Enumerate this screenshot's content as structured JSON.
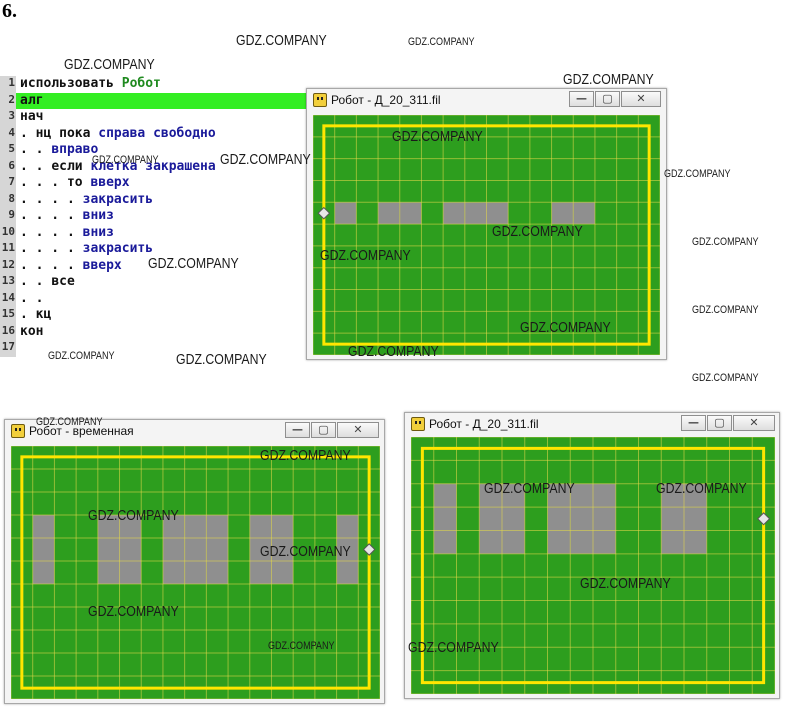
{
  "task_number": "6.",
  "code_lines": [
    {
      "n": "1",
      "parts": [
        {
          "t": "использовать ",
          "c": "kw"
        },
        {
          "t": "Робот",
          "c": "rob"
        }
      ]
    },
    {
      "n": "2",
      "hl": true,
      "parts": [
        {
          "t": "алг",
          "c": "kw"
        }
      ]
    },
    {
      "n": "3",
      "parts": [
        {
          "t": "нач",
          "c": "kw"
        }
      ]
    },
    {
      "n": "4",
      "parts": [
        {
          "t": ". ",
          "c": "dot"
        },
        {
          "t": "нц пока ",
          "c": "kw"
        },
        {
          "t": "справа свободно",
          "c": "id"
        }
      ]
    },
    {
      "n": "5",
      "parts": [
        {
          "t": ". . ",
          "c": "dot"
        },
        {
          "t": "вправо",
          "c": "id"
        }
      ]
    },
    {
      "n": "6",
      "parts": [
        {
          "t": ". . ",
          "c": "dot"
        },
        {
          "t": "если ",
          "c": "kw"
        },
        {
          "t": "клетка закрашена",
          "c": "id"
        }
      ]
    },
    {
      "n": "7",
      "parts": [
        {
          "t": ". . . ",
          "c": "dot"
        },
        {
          "t": "то ",
          "c": "kw"
        },
        {
          "t": "вверх",
          "c": "id"
        }
      ]
    },
    {
      "n": "8",
      "parts": [
        {
          "t": ". . . . ",
          "c": "dot"
        },
        {
          "t": "закрасить",
          "c": "id"
        }
      ]
    },
    {
      "n": "9",
      "parts": [
        {
          "t": ". . . . ",
          "c": "dot"
        },
        {
          "t": "вниз",
          "c": "id"
        }
      ]
    },
    {
      "n": "10",
      "parts": [
        {
          "t": ". . . . ",
          "c": "dot"
        },
        {
          "t": "вниз",
          "c": "id"
        }
      ]
    },
    {
      "n": "11",
      "parts": [
        {
          "t": ". . . . ",
          "c": "dot"
        },
        {
          "t": "закрасить",
          "c": "id"
        }
      ]
    },
    {
      "n": "12",
      "parts": [
        {
          "t": ". . . . ",
          "c": "dot"
        },
        {
          "t": "вверх",
          "c": "id"
        }
      ]
    },
    {
      "n": "13",
      "parts": [
        {
          "t": ". . ",
          "c": "dot"
        },
        {
          "t": "все",
          "c": "kw"
        }
      ]
    },
    {
      "n": "14",
      "parts": [
        {
          "t": ". .",
          "c": "dot"
        }
      ]
    },
    {
      "n": "15",
      "parts": [
        {
          "t": ". ",
          "c": "dot"
        },
        {
          "t": "кц",
          "c": "kw"
        }
      ]
    },
    {
      "n": "16",
      "parts": [
        {
          "t": "кон",
          "c": "kw"
        }
      ]
    },
    {
      "n": "17",
      "parts": []
    }
  ],
  "windows": [
    {
      "id": "w1",
      "title": "Робот - Д_20_311.fil",
      "cols": 16,
      "rows": 11,
      "robot": {
        "col": 0,
        "row": 4
      },
      "gray_cells": [
        [
          4,
          1
        ],
        [
          4,
          3
        ],
        [
          4,
          4
        ],
        [
          4,
          6
        ],
        [
          4,
          7
        ],
        [
          4,
          8
        ],
        [
          4,
          11
        ],
        [
          4,
          12
        ]
      ]
    },
    {
      "id": "w2",
      "title": "Робот - временная",
      "cols": 17,
      "rows": 11,
      "robot": {
        "col": 16,
        "row": 4
      },
      "gray_cells": [
        [
          3,
          1
        ],
        [
          4,
          1
        ],
        [
          5,
          1
        ],
        [
          3,
          4
        ],
        [
          4,
          4
        ],
        [
          5,
          4
        ],
        [
          3,
          5
        ],
        [
          4,
          5
        ],
        [
          5,
          5
        ],
        [
          3,
          7
        ],
        [
          4,
          7
        ],
        [
          5,
          7
        ],
        [
          3,
          8
        ],
        [
          4,
          8
        ],
        [
          5,
          8
        ],
        [
          3,
          9
        ],
        [
          4,
          9
        ],
        [
          5,
          9
        ],
        [
          3,
          11
        ],
        [
          4,
          11
        ],
        [
          5,
          11
        ],
        [
          3,
          12
        ],
        [
          4,
          12
        ],
        [
          5,
          12
        ],
        [
          3,
          15
        ],
        [
          4,
          15
        ],
        [
          5,
          15
        ]
      ]
    },
    {
      "id": "w3",
      "title": "Робот - Д_20_311.fil",
      "cols": 16,
      "rows": 11,
      "robot": {
        "col": 15,
        "row": 3
      },
      "gray_cells": [
        [
          2,
          1
        ],
        [
          3,
          1
        ],
        [
          4,
          1
        ],
        [
          2,
          3
        ],
        [
          3,
          3
        ],
        [
          4,
          3
        ],
        [
          2,
          4
        ],
        [
          3,
          4
        ],
        [
          4,
          4
        ],
        [
          2,
          6
        ],
        [
          3,
          6
        ],
        [
          4,
          6
        ],
        [
          2,
          7
        ],
        [
          3,
          7
        ],
        [
          4,
          7
        ],
        [
          2,
          8
        ],
        [
          3,
          8
        ],
        [
          4,
          8
        ],
        [
          2,
          11
        ],
        [
          3,
          11
        ],
        [
          4,
          11
        ],
        [
          2,
          12
        ],
        [
          3,
          12
        ],
        [
          4,
          12
        ]
      ]
    }
  ],
  "colors": {
    "field": "#2d9e1e",
    "grid": "#e8d84a",
    "wall": "#ffe600",
    "painted": "#8f8f8f",
    "robot": "#e6e6e6"
  },
  "window_buttons": {
    "minimize": "—",
    "maximize": "▢",
    "close": "✕"
  },
  "watermark": "GDZ.COMPANY"
}
